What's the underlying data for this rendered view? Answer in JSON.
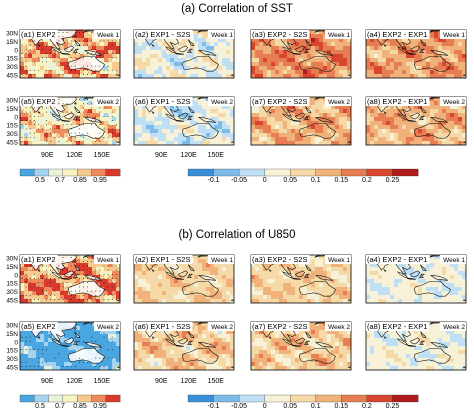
{
  "colors": {
    "land": "#ffffff",
    "coast": "#111111",
    "stipple": "#000000",
    "left_scale": [
      "#4aa6e0",
      "#a6d4f0",
      "#e8f3d8",
      "#f7f3c2",
      "#f6c98e",
      "#ef8a5a",
      "#d93a2e"
    ],
    "right_scale": [
      "#3a90d8",
      "#7dbbe8",
      "#bfe0f4",
      "#f7f1d8",
      "#f5d9a6",
      "#f0b27a",
      "#e77d52",
      "#d8462f",
      "#b01a1a"
    ]
  },
  "chart_data": [
    {
      "type": "heatmap",
      "title": "(a) Correlation of SST",
      "lat_ticks": [
        "30N",
        "15N",
        "0",
        "15S",
        "30S",
        "45S"
      ],
      "lon_ticks": [
        "90E",
        "120E",
        "150E"
      ],
      "panels": [
        {
          "label": "(a1) EXP2",
          "week": "Week 1",
          "base": 0.82,
          "amp": 0.22,
          "scale": "left",
          "stipple": 0.55
        },
        {
          "label": "(a2) EXP1 - S2S",
          "week": "Week 1",
          "base": 0.02,
          "amp": 0.08,
          "scale": "right",
          "stipple": 0
        },
        {
          "label": "(a3) EXP2 - S2S",
          "week": "Week 1",
          "base": 0.16,
          "amp": 0.09,
          "scale": "right",
          "stipple": 0
        },
        {
          "label": "(a4) EXP2 - EXP1",
          "week": "Week 1",
          "base": 0.14,
          "amp": 0.09,
          "scale": "right",
          "stipple": 0
        },
        {
          "label": "(a5) EXP2",
          "week": "Week 2",
          "base": 0.76,
          "amp": 0.2,
          "scale": "left",
          "stipple": 0.5
        },
        {
          "label": "(a6) EXP1 - S2S",
          "week": "Week 2",
          "base": 0.0,
          "amp": 0.08,
          "scale": "right",
          "stipple": 0
        },
        {
          "label": "(a7) EXP2 - S2S",
          "week": "Week 2",
          "base": 0.12,
          "amp": 0.09,
          "scale": "right",
          "stipple": 0
        },
        {
          "label": "(a8) EXP2 - EXP1",
          "week": "Week 2",
          "base": 0.12,
          "amp": 0.09,
          "scale": "right",
          "stipple": 0
        }
      ],
      "colorbars": [
        {
          "ticks": [
            "0.5",
            "0.7",
            "0.85",
            "0.95"
          ],
          "scale": "left"
        },
        {
          "ticks": [
            "-0.1",
            "-0.05",
            "0",
            "0.05",
            "0.1",
            "0.15",
            "0.2",
            "0.25"
          ],
          "scale": "right"
        }
      ]
    },
    {
      "type": "heatmap",
      "title": "(b) Correlation of U850",
      "lat_ticks": [
        "30N",
        "15N",
        "0",
        "15S",
        "30S",
        "45S"
      ],
      "lon_ticks": [
        "90E",
        "120E",
        "150E"
      ],
      "panels": [
        {
          "label": "(a1) EXP2",
          "week": "Week 1",
          "base": 0.86,
          "amp": 0.15,
          "scale": "left",
          "stipple": 0.7
        },
        {
          "label": "(a2) EXP1 - S2S",
          "week": "Week 1",
          "base": 0.08,
          "amp": 0.06,
          "scale": "right",
          "stipple": 0
        },
        {
          "label": "(a3) EXP2 - S2S",
          "week": "Week 1",
          "base": 0.08,
          "amp": 0.07,
          "scale": "right",
          "stipple": 0
        },
        {
          "label": "(a4) EXP2 - EXP1",
          "week": "Week 1",
          "base": 0.01,
          "amp": 0.05,
          "scale": "right",
          "stipple": 0
        },
        {
          "label": "(a5) EXP2",
          "week": "Week 2",
          "base": 0.45,
          "amp": 0.18,
          "scale": "left",
          "stipple": 0.3
        },
        {
          "label": "(a6) EXP1 - S2S",
          "week": "Week 2",
          "base": 0.09,
          "amp": 0.09,
          "scale": "right",
          "stipple": 0
        },
        {
          "label": "(a7) EXP2 - S2S",
          "week": "Week 2",
          "base": 0.09,
          "amp": 0.09,
          "scale": "right",
          "stipple": 0
        },
        {
          "label": "(a8) EXP2 - EXP1",
          "week": "Week 2",
          "base": 0.02,
          "amp": 0.06,
          "scale": "right",
          "stipple": 0
        }
      ],
      "colorbars": [
        {
          "ticks": [
            "0.5",
            "0.7",
            "0.85",
            "0.95"
          ],
          "scale": "left"
        },
        {
          "ticks": [
            "-0.1",
            "-0.05",
            "0",
            "0.05",
            "0.1",
            "0.15",
            "0.2",
            "0.25"
          ],
          "scale": "right"
        }
      ]
    }
  ]
}
